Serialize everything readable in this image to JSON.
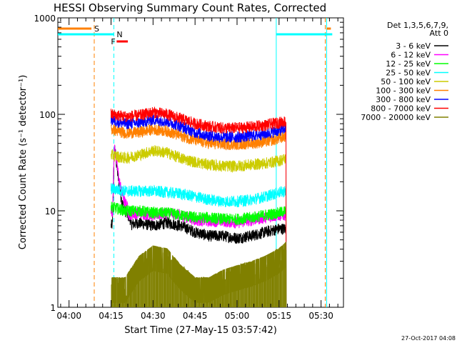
{
  "chart_data": {
    "type": "line",
    "title": "HESSI Observing Summary Count Rates, Corrected",
    "xlabel": "Start Time (27-May-15 03:57:42)",
    "ylabel": "Corrected Count Rate (s⁻¹ detector⁻¹)",
    "y_scale": "log",
    "ylim": [
      1,
      1000
    ],
    "xlim_minutes_after_04_00": [
      -4,
      98
    ],
    "x_ticks": [
      {
        "label": "04:00",
        "t": 0
      },
      {
        "label": "04:15",
        "t": 15
      },
      {
        "label": "04:30",
        "t": 30
      },
      {
        "label": "04:45",
        "t": 45
      },
      {
        "label": "05:00",
        "t": 60
      },
      {
        "label": "05:15",
        "t": 75
      },
      {
        "label": "05:30",
        "t": 90
      }
    ],
    "y_ticks": [
      {
        "label": "1",
        "v": 1
      },
      {
        "label": "10",
        "v": 10
      },
      {
        "label": "100",
        "v": 100
      },
      {
        "label": "1000",
        "v": 1000
      }
    ],
    "legend_header": [
      "Det 1,3,5,6,7,9,",
      "Att 0"
    ],
    "legend_position": "right",
    "series": [
      {
        "name": "3 - 6 keV",
        "color": "#000000",
        "points": [
          [
            15,
            7
          ],
          [
            17,
            8
          ],
          [
            20,
            7
          ],
          [
            25,
            7.5
          ],
          [
            30,
            7
          ],
          [
            35,
            7.5
          ],
          [
            40,
            7
          ],
          [
            45,
            6
          ],
          [
            50,
            5.5
          ],
          [
            55,
            5.5
          ],
          [
            60,
            5.2
          ],
          [
            65,
            5.5
          ],
          [
            70,
            6
          ],
          [
            75,
            6.5
          ],
          [
            77.5,
            6.5
          ]
        ],
        "flare": [
          [
            15.5,
            7
          ],
          [
            16.2,
            48
          ],
          [
            17,
            30
          ],
          [
            18,
            17
          ],
          [
            19,
            12
          ],
          [
            20,
            10
          ],
          [
            21,
            9
          ],
          [
            22,
            8
          ]
        ]
      },
      {
        "name": "6 - 12 keV",
        "color": "#ff00ff",
        "points": [
          [
            15,
            10
          ],
          [
            17,
            10
          ],
          [
            20,
            9
          ],
          [
            25,
            9.5
          ],
          [
            30,
            9
          ],
          [
            35,
            9.5
          ],
          [
            40,
            9
          ],
          [
            45,
            8
          ],
          [
            50,
            7.8
          ],
          [
            55,
            7.8
          ],
          [
            60,
            7.5
          ],
          [
            65,
            8
          ],
          [
            70,
            8.5
          ],
          [
            75,
            9
          ],
          [
            77.5,
            9
          ]
        ],
        "flare": [
          [
            15.5,
            10
          ],
          [
            16.2,
            45
          ],
          [
            17,
            32
          ],
          [
            18,
            20
          ],
          [
            19,
            15
          ],
          [
            20,
            12
          ],
          [
            21,
            11
          ]
        ]
      },
      {
        "name": "12 - 25 keV",
        "color": "#00ff00",
        "points": [
          [
            15,
            11
          ],
          [
            20,
            10
          ],
          [
            25,
            10
          ],
          [
            30,
            9.5
          ],
          [
            35,
            9.5
          ],
          [
            40,
            9
          ],
          [
            45,
            8.5
          ],
          [
            50,
            8.5
          ],
          [
            55,
            8.2
          ],
          [
            60,
            8.2
          ],
          [
            65,
            8.5
          ],
          [
            70,
            9
          ],
          [
            75,
            9.5
          ],
          [
            77.5,
            10
          ]
        ]
      },
      {
        "name": "25 - 50 keV",
        "color": "#00ffff",
        "points": [
          [
            15,
            17
          ],
          [
            20,
            16
          ],
          [
            25,
            16
          ],
          [
            30,
            16
          ],
          [
            35,
            15.5
          ],
          [
            40,
            15
          ],
          [
            45,
            14
          ],
          [
            50,
            13
          ],
          [
            55,
            12.5
          ],
          [
            60,
            12.5
          ],
          [
            65,
            13
          ],
          [
            70,
            14
          ],
          [
            75,
            15.5
          ],
          [
            77.5,
            16
          ]
        ]
      },
      {
        "name": "50 - 100 keV",
        "color": "#cccc00",
        "points": [
          [
            15,
            38
          ],
          [
            20,
            35
          ],
          [
            25,
            38
          ],
          [
            30,
            42
          ],
          [
            35,
            40
          ],
          [
            40,
            35
          ],
          [
            45,
            32
          ],
          [
            50,
            30
          ],
          [
            55,
            29
          ],
          [
            60,
            29
          ],
          [
            65,
            30
          ],
          [
            70,
            31
          ],
          [
            75,
            33
          ],
          [
            77.5,
            35
          ]
        ]
      },
      {
        "name": "100 - 300 keV",
        "color": "#ff8000",
        "points": [
          [
            15,
            70
          ],
          [
            20,
            64
          ],
          [
            25,
            65
          ],
          [
            30,
            70
          ],
          [
            35,
            67
          ],
          [
            40,
            60
          ],
          [
            45,
            54
          ],
          [
            50,
            50
          ],
          [
            55,
            49
          ],
          [
            60,
            49
          ],
          [
            65,
            50
          ],
          [
            70,
            52
          ],
          [
            75,
            56
          ],
          [
            77.5,
            60
          ]
        ]
      },
      {
        "name": "300 - 800 keV",
        "color": "#0000ff",
        "points": [
          [
            15,
            88
          ],
          [
            20,
            80
          ],
          [
            25,
            82
          ],
          [
            30,
            88
          ],
          [
            35,
            85
          ],
          [
            40,
            75
          ],
          [
            45,
            65
          ],
          [
            50,
            60
          ],
          [
            55,
            58
          ],
          [
            60,
            58
          ],
          [
            65,
            60
          ],
          [
            70,
            63
          ],
          [
            75,
            68
          ],
          [
            77.5,
            72
          ]
        ]
      },
      {
        "name": "800 - 7000 keV",
        "color": "#ff0000",
        "points": [
          [
            15,
            100
          ],
          [
            20,
            95
          ],
          [
            25,
            97
          ],
          [
            30,
            105
          ],
          [
            35,
            100
          ],
          [
            40,
            90
          ],
          [
            45,
            80
          ],
          [
            50,
            75
          ],
          [
            55,
            72
          ],
          [
            60,
            72
          ],
          [
            65,
            74
          ],
          [
            70,
            77
          ],
          [
            75,
            82
          ],
          [
            77.5,
            85
          ]
        ]
      },
      {
        "name": "7000 - 20000 keV",
        "color": "#808000",
        "points": [
          [
            15,
            1.5
          ],
          [
            20,
            1.5
          ],
          [
            25,
            2.5
          ],
          [
            30,
            3.2
          ],
          [
            35,
            3
          ],
          [
            40,
            2
          ],
          [
            45,
            1.5
          ],
          [
            50,
            1.5
          ],
          [
            55,
            1.8
          ],
          [
            60,
            2
          ],
          [
            65,
            2.2
          ],
          [
            70,
            2.5
          ],
          [
            75,
            3
          ],
          [
            77.5,
            3.5
          ]
        ]
      }
    ],
    "markers": {
      "orange_dashed_lines_t": [
        9,
        91.5
      ],
      "cyan_dashed_line_t": 16,
      "cyan_solid_lines_t": [
        74,
        92
      ],
      "S_label": "S",
      "N_label": "N",
      "F_label": "F",
      "S_interval": [
        -4,
        8
      ],
      "N_interval": [
        -4,
        16
      ],
      "F_interval": [
        17,
        21
      ],
      "end_cyan_interval": [
        74,
        94
      ]
    },
    "footer": "27-Oct-2017 04:08"
  }
}
